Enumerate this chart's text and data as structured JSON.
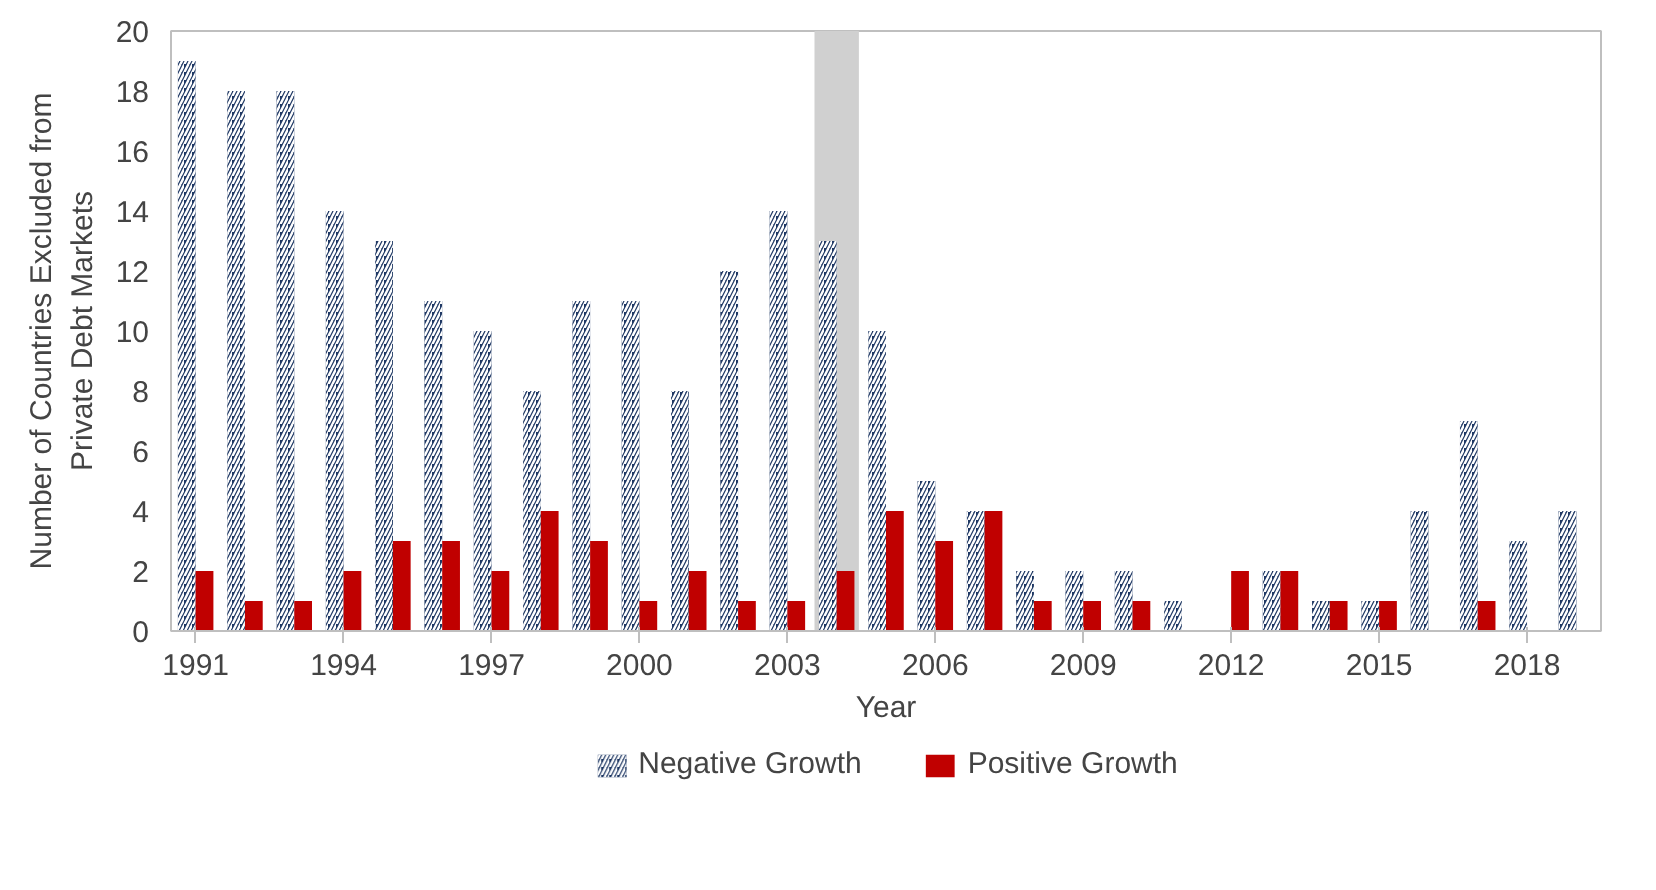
{
  "chart_data": {
    "type": "bar",
    "xlabel": "Year",
    "ylabel": "Number of Countries Excluded from Private Debt Markets",
    "x": [
      1991,
      1992,
      1993,
      1994,
      1995,
      1996,
      1997,
      1998,
      1999,
      2000,
      2001,
      2002,
      2003,
      2004,
      2005,
      2006,
      2007,
      2008,
      2009,
      2010,
      2011,
      2012,
      2013,
      2014,
      2015,
      2016,
      2017,
      2018,
      2019
    ],
    "series": [
      {
        "name": "Negative Growth",
        "color": "#1f3864",
        "values": [
          19,
          18,
          18,
          14,
          13,
          11,
          10,
          8,
          11,
          11,
          8,
          12,
          14,
          13,
          10,
          5,
          4,
          2,
          2,
          2,
          1,
          0,
          2,
          1,
          1,
          4,
          7,
          3,
          4
        ]
      },
      {
        "name": "Positive Growth",
        "color": "#c00000",
        "values": [
          2,
          1,
          1,
          2,
          3,
          3,
          2,
          4,
          3,
          1,
          2,
          1,
          1,
          2,
          4,
          3,
          4,
          1,
          1,
          1,
          0,
          2,
          2,
          1,
          1,
          0,
          1,
          0,
          0
        ]
      }
    ],
    "xlim": [
      1990.5,
      2019.5
    ],
    "xticks": [
      1991,
      1994,
      1997,
      2000,
      2003,
      2006,
      2009,
      2012,
      2015,
      2018
    ],
    "ylim": [
      0,
      20
    ],
    "yticks": [
      0,
      2,
      4,
      6,
      8,
      10,
      12,
      14,
      16,
      18,
      20
    ],
    "bands": [
      {
        "axis": "x",
        "from": 2003.55,
        "to": 2004.45,
        "color": "#d0d0d0"
      }
    ],
    "grid": false,
    "legend": "bottom"
  }
}
